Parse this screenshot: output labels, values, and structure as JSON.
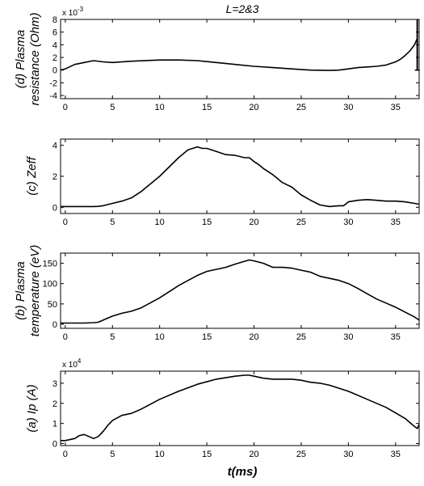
{
  "figure": {
    "title": "L=2&3",
    "xlabel": "t(ms)"
  },
  "chart_data": [
    {
      "id": "d",
      "type": "line",
      "ylabel": [
        "(d) Plasma",
        "resistance (Ohm)"
      ],
      "exponent": {
        "base": "x 10",
        "power": "-3"
      },
      "xlim": [
        -0.5,
        37.5
      ],
      "ylim": [
        -4.5,
        8
      ],
      "xticks": [
        0,
        5,
        10,
        15,
        20,
        25,
        30,
        35
      ],
      "yticks": [
        -4,
        -2,
        0,
        2,
        4,
        6,
        8
      ],
      "xticklabels": [
        "0",
        "5",
        "10",
        "15",
        "20",
        "25",
        "30",
        "35"
      ],
      "yticklabels": [
        "-4",
        "-2",
        "0",
        "2",
        "4",
        "6",
        "8"
      ],
      "x": [
        -0.5,
        0,
        1,
        2,
        3,
        4,
        5,
        7,
        10,
        12,
        14,
        16,
        18,
        20,
        22,
        24,
        26,
        28,
        29,
        30,
        31,
        32,
        33,
        34,
        35,
        35.5,
        36,
        36.5,
        37,
        37.3
      ],
      "y": [
        0,
        0.2,
        0.9,
        1.2,
        1.5,
        1.3,
        1.2,
        1.4,
        1.6,
        1.6,
        1.5,
        1.2,
        0.9,
        0.6,
        0.4,
        0.2,
        0.0,
        -0.05,
        0.0,
        0.2,
        0.4,
        0.5,
        0.6,
        0.8,
        1.3,
        1.7,
        2.3,
        3.0,
        4.0,
        5.0
      ],
      "errorbar": {
        "x": 37.3,
        "low": 0,
        "high": 10
      }
    },
    {
      "id": "c",
      "type": "line",
      "ylabel": [
        "(c) Zeff"
      ],
      "xlim": [
        -0.5,
        37.5
      ],
      "ylim": [
        -0.4,
        4.4
      ],
      "xticks": [
        0,
        5,
        10,
        15,
        20,
        25,
        30,
        35
      ],
      "yticks": [
        0,
        2,
        4
      ],
      "xticklabels": [
        "0",
        "5",
        "10",
        "15",
        "20",
        "25",
        "30",
        "35"
      ],
      "yticklabels": [
        "0",
        "2",
        "4"
      ],
      "x": [
        -0.5,
        1,
        2,
        3,
        3.5,
        4,
        5,
        6,
        7,
        8,
        9,
        10,
        11,
        12,
        13,
        14,
        14.5,
        15,
        16,
        17,
        18,
        19,
        19.5,
        20,
        20.5,
        21,
        22,
        23,
        24,
        25,
        26,
        27,
        28,
        29,
        29.5,
        30,
        31,
        32,
        33,
        34,
        35,
        36,
        37,
        37.5
      ],
      "y": [
        0.05,
        0.05,
        0.05,
        0.05,
        0.06,
        0.1,
        0.25,
        0.4,
        0.6,
        1.0,
        1.5,
        2.0,
        2.6,
        3.2,
        3.7,
        3.9,
        3.8,
        3.8,
        3.6,
        3.4,
        3.35,
        3.2,
        3.2,
        2.95,
        2.75,
        2.5,
        2.1,
        1.6,
        1.3,
        0.8,
        0.45,
        0.15,
        0.05,
        0.1,
        0.1,
        0.35,
        0.45,
        0.5,
        0.45,
        0.4,
        0.4,
        0.35,
        0.25,
        0.2
      ]
    },
    {
      "id": "b",
      "type": "line",
      "ylabel": [
        "(b) Plasma",
        "temperature (eV)"
      ],
      "xlim": [
        -0.5,
        37.5
      ],
      "ylim": [
        -10,
        175
      ],
      "xticks": [
        0,
        5,
        10,
        15,
        20,
        25,
        30,
        35
      ],
      "yticks": [
        0,
        50,
        100,
        150
      ],
      "xticklabels": [
        "0",
        "5",
        "10",
        "15",
        "20",
        "25",
        "30",
        "35"
      ],
      "yticklabels": [
        "0",
        "50",
        "100",
        "150"
      ],
      "x": [
        -0.5,
        1,
        2,
        3,
        3.5,
        4,
        5,
        6,
        7,
        8,
        10,
        12,
        14,
        15,
        16,
        17,
        18,
        19,
        19.5,
        20,
        21,
        22,
        23,
        24,
        25,
        26,
        27,
        28,
        29,
        30,
        31,
        32,
        33,
        34,
        35,
        36,
        37,
        37.5
      ],
      "y": [
        3,
        3,
        3,
        4,
        5,
        10,
        20,
        27,
        32,
        40,
        65,
        95,
        120,
        130,
        135,
        140,
        148,
        155,
        158,
        156,
        150,
        140,
        140,
        138,
        133,
        128,
        118,
        113,
        108,
        100,
        88,
        75,
        62,
        52,
        42,
        30,
        18,
        10
      ]
    },
    {
      "id": "a",
      "type": "line",
      "ylabel": [
        "(a) Ip (A)"
      ],
      "exponent": {
        "base": "x 10",
        "power": "4"
      },
      "xlim": [
        -0.5,
        37.5
      ],
      "ylim": [
        -0.1,
        3.6
      ],
      "xticks": [
        0,
        5,
        10,
        15,
        20,
        25,
        30,
        35
      ],
      "yticks": [
        0,
        1,
        2,
        3
      ],
      "xticklabels": [
        "0",
        "5",
        "10",
        "15",
        "20",
        "25",
        "30",
        "35"
      ],
      "yticklabels": [
        "0",
        "1",
        "2",
        "3"
      ],
      "x": [
        -0.5,
        0,
        1,
        1.5,
        2,
        2.5,
        3,
        3.5,
        4,
        4.5,
        5,
        6,
        7,
        8,
        10,
        12,
        14,
        16,
        18,
        19,
        19.5,
        20,
        21,
        22,
        23,
        24,
        25,
        26,
        27,
        28,
        30,
        32,
        34,
        36,
        37,
        37.3,
        37.5
      ],
      "y": [
        0.15,
        0.15,
        0.25,
        0.4,
        0.45,
        0.35,
        0.25,
        0.35,
        0.6,
        0.9,
        1.15,
        1.4,
        1.5,
        1.7,
        2.2,
        2.6,
        2.95,
        3.2,
        3.35,
        3.4,
        3.4,
        3.35,
        3.25,
        3.2,
        3.2,
        3.2,
        3.15,
        3.05,
        3.0,
        2.9,
        2.6,
        2.2,
        1.8,
        1.25,
        0.85,
        0.75,
        0.95
      ]
    }
  ]
}
